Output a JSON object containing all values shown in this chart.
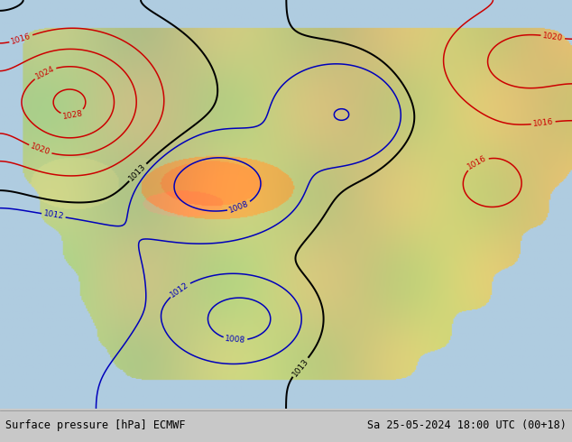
{
  "title_left": "Surface pressure [hPa] ECMWF",
  "title_right": "Sa 25-05-2024 18:00 UTC (00+18)",
  "fig_width": 6.34,
  "fig_height": 4.9,
  "dpi": 100,
  "footer_color": "#c8c8c8",
  "footer_text_color": "#000000",
  "footer_fontsize": 8.5,
  "ocean_color": "#b0cce0",
  "land_colors": {
    "lowland": "#c8d8a0",
    "midland": "#d4c890",
    "highland": "#c8a878",
    "tibet": "#b87840",
    "tibet_inner": "#9b5a1e"
  },
  "contour_blue": "#0000bb",
  "contour_red": "#cc0000",
  "contour_black": "#000000",
  "contour_lw": 1.1
}
